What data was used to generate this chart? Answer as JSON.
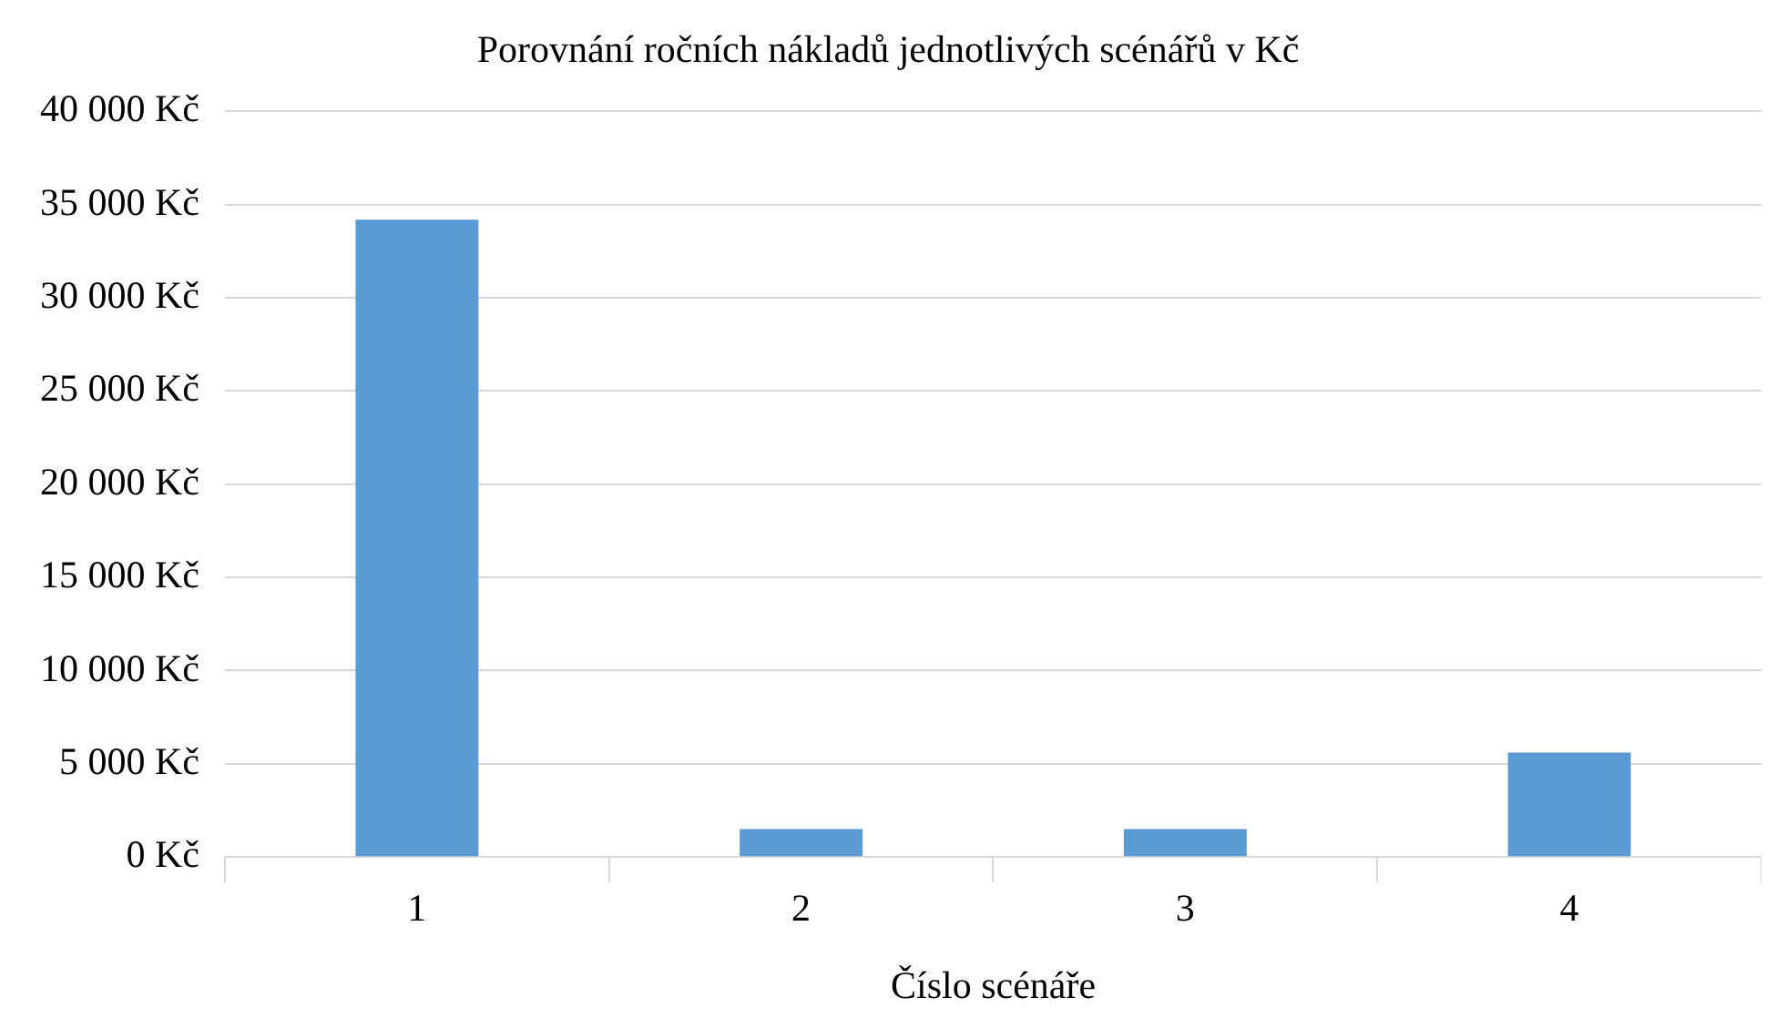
{
  "chart_data": {
    "type": "bar",
    "title": "Porovnání ročních nákladů jednotlivých scénářů v Kč",
    "xlabel": "Číslo scénáře",
    "categories": [
      "1",
      "2",
      "3",
      "4"
    ],
    "values": [
      34200,
      1500,
      1500,
      5600
    ],
    "color": "#5b9bd5",
    "ylim": [
      0,
      40000
    ],
    "yticks": [
      {
        "value": 0,
        "label": "0 Kč"
      },
      {
        "value": 5000,
        "label": "5 000 Kč"
      },
      {
        "value": 10000,
        "label": "10 000 Kč"
      },
      {
        "value": 15000,
        "label": "15 000 Kč"
      },
      {
        "value": 20000,
        "label": "20 000 Kč"
      },
      {
        "value": 25000,
        "label": "25 000 Kč"
      },
      {
        "value": 30000,
        "label": "30 000 Kč"
      },
      {
        "value": 35000,
        "label": "35 000 Kč"
      },
      {
        "value": 40000,
        "label": "40 000 Kč"
      }
    ],
    "grid": "y",
    "legend": false
  }
}
